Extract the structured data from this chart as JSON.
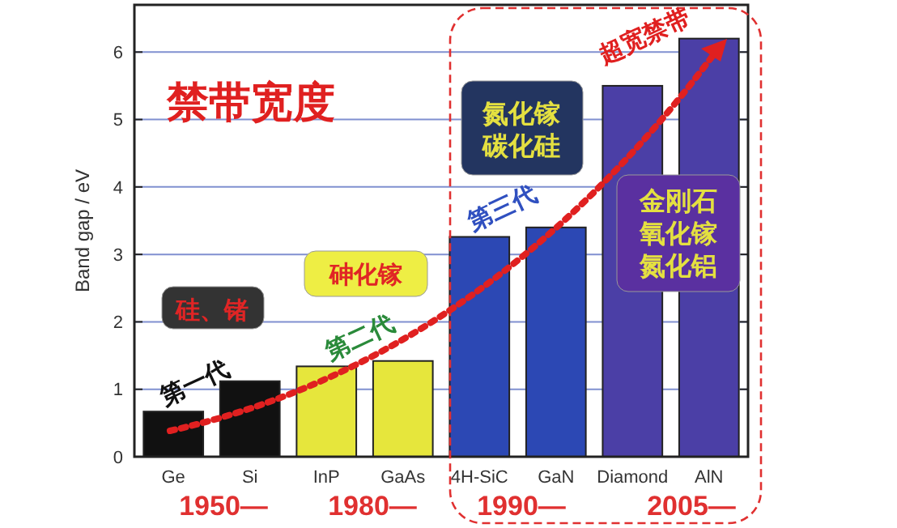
{
  "chart_data": {
    "type": "bar",
    "ylabel": "Band gap / eV",
    "categories": [
      "Ge",
      "Si",
      "InP",
      "GaAs",
      "4H-SiC",
      "GaN",
      "Diamond",
      "AlN"
    ],
    "values": [
      0.67,
      1.12,
      1.34,
      1.42,
      3.26,
      3.4,
      5.5,
      6.2
    ],
    "colors": [
      "#111111",
      "#111111",
      "#e6e63c",
      "#e6e63c",
      "#2c48b4",
      "#2c48b4",
      "#4b3fa6",
      "#4b3fa6"
    ],
    "ylim": [
      0,
      6.7
    ],
    "yticks": [
      0,
      1,
      2,
      3,
      4,
      5,
      6
    ],
    "grid": "y",
    "annotations": [
      "禁带宽度",
      "硅、锗",
      "砷化镓",
      "氮化镓",
      "碳化硅",
      "金刚石",
      "氧化镓",
      "氮化铝",
      "第一代",
      "第二代",
      "第三代",
      "超宽禁带",
      "1950—",
      "1980—",
      "1990—",
      "2005—"
    ]
  }
}
